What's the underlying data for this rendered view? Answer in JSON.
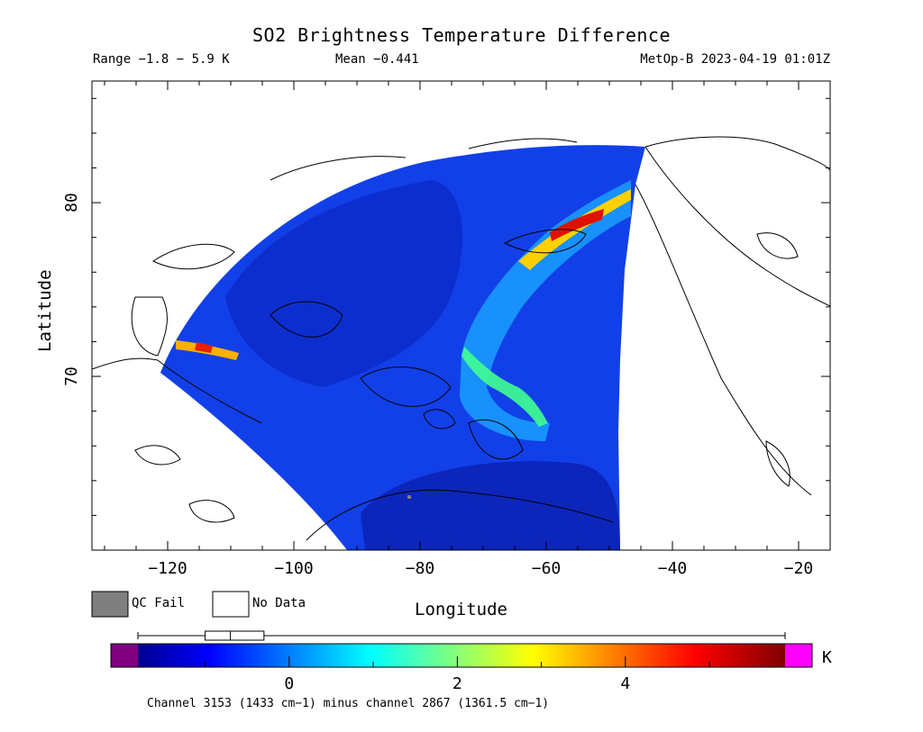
{
  "header": {
    "title": "SO2 Brightness Temperature Difference",
    "range": "Range −1.8 − 5.9 K",
    "mean": "Mean −0.441",
    "satellite_time": "MetOp-B 2023-04-19 01:01Z"
  },
  "map": {
    "x_axis_label": "Longitude",
    "y_axis_label": "Latitude",
    "x_ticks": [
      {
        "value": -120,
        "label": "−120"
      },
      {
        "value": -100,
        "label": "−100"
      },
      {
        "value": -80,
        "label": "−80"
      },
      {
        "value": -60,
        "label": "−60"
      },
      {
        "value": -40,
        "label": "−40"
      },
      {
        "value": -20,
        "label": "−20"
      }
    ],
    "y_ticks": [
      {
        "value": 70,
        "label": "70"
      },
      {
        "value": 80,
        "label": "80"
      }
    ],
    "lon_range": [
      -132,
      -15
    ],
    "lat_range": [
      60,
      87
    ]
  },
  "legend": {
    "qc_fail_label": "QC Fail",
    "no_data_label": "No Data",
    "qc_fail_color": "#7f7f7f",
    "no_data_color": "#ffffff"
  },
  "colorbar": {
    "unit": "K",
    "min": -1.8,
    "max": 5.9,
    "under_color": "#800080",
    "over_color": "#ff00ff",
    "ticks": [
      {
        "value": 0,
        "label": "0"
      },
      {
        "value": 2,
        "label": "2"
      },
      {
        "value": 4,
        "label": "4"
      }
    ],
    "box_summary": {
      "whisker_low": -1.8,
      "q1": -1.0,
      "median": -0.7,
      "q3": -0.3,
      "whisker_high": 5.9
    }
  },
  "footer": {
    "caption": "Channel 3153 (1433 cm−1) minus channel 2867 (1361.5 cm−1)"
  }
}
